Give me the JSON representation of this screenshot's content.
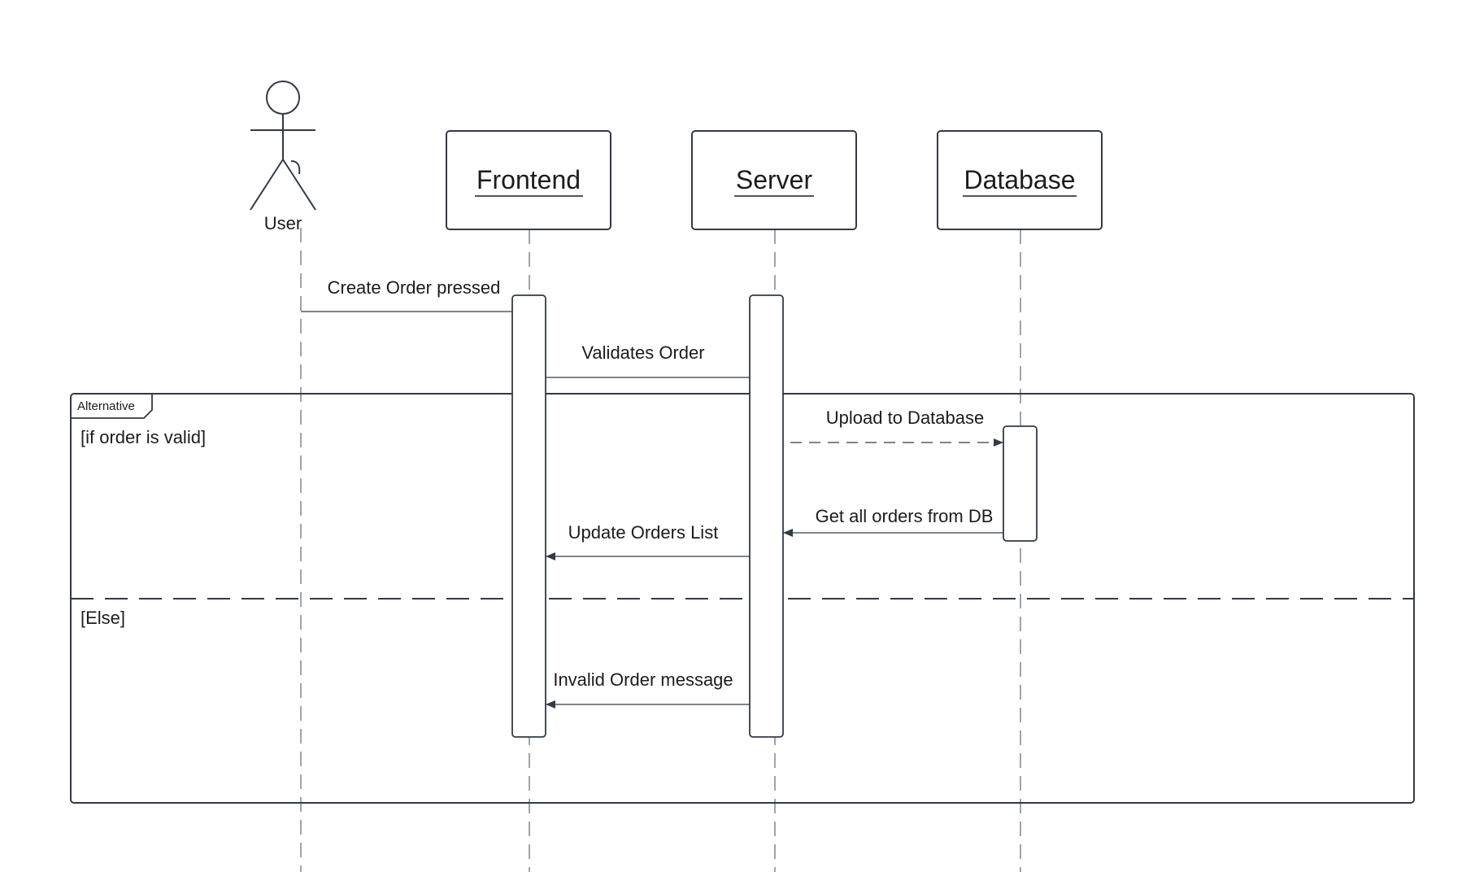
{
  "participants": [
    {
      "id": "user",
      "label": "User",
      "kind": "actor"
    },
    {
      "id": "frontend",
      "label": "Frontend",
      "kind": "box"
    },
    {
      "id": "server",
      "label": "Server",
      "kind": "box"
    },
    {
      "id": "database",
      "label": "Database",
      "kind": "box"
    }
  ],
  "messages": [
    {
      "label": "Create Order pressed",
      "from": "user",
      "to": "frontend",
      "style": "solid",
      "arrow": "none"
    },
    {
      "label": "Validates Order",
      "from": "frontend",
      "to": "server",
      "style": "solid",
      "arrow": "none"
    },
    {
      "label": "Upload to Database",
      "from": "server",
      "to": "database",
      "style": "dashed",
      "arrow": "filled"
    },
    {
      "label": "Get all orders from DB",
      "from": "database",
      "to": "server",
      "style": "solid",
      "arrow": "filled"
    },
    {
      "label": "Update Orders List",
      "from": "server",
      "to": "frontend",
      "style": "solid",
      "arrow": "filled"
    },
    {
      "label": "Invalid Order message",
      "from": "server",
      "to": "frontend",
      "style": "solid",
      "arrow": "filled"
    }
  ],
  "fragment": {
    "tag": "Alternative",
    "guard_1": "[if order is valid]",
    "guard_2": "[Else]"
  },
  "colors": {
    "line": "#323a46",
    "text": "#1c1c1e",
    "lifeline": "#6b7280",
    "background": "#ffffff"
  }
}
